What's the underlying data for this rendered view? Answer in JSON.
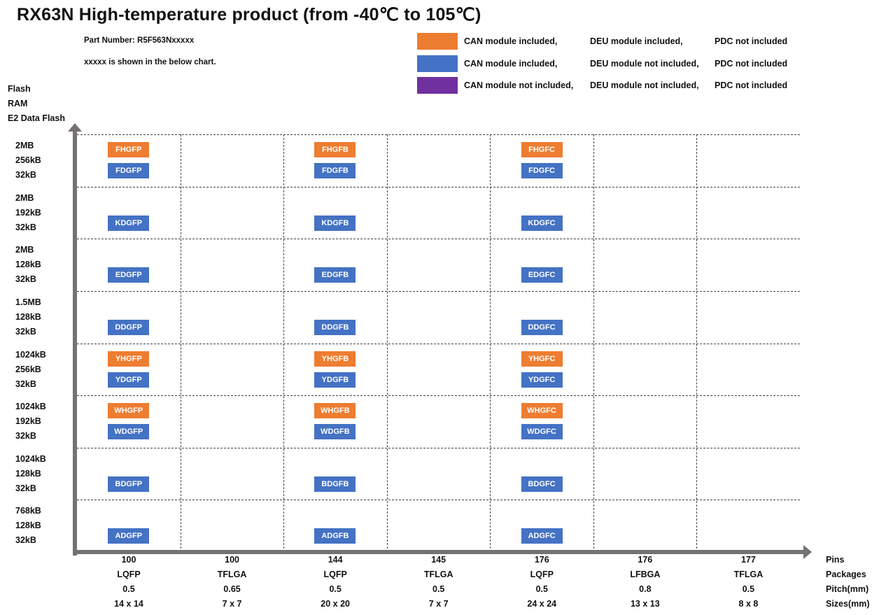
{
  "title": "RX63N  High-temperature product (from -40℃ to 105℃)",
  "part_number": "Part Number: R5F563Nxxxxx",
  "note": "xxxxx is shown in the below chart.",
  "colors": {
    "orange": "#ED7D31",
    "blue": "#4472C4",
    "purple": "#7030A0",
    "axis": "#767171"
  },
  "legend": [
    {
      "color": "orange",
      "can": "CAN module included,",
      "deu": "DEU module included,",
      "pdc": "PDC not included"
    },
    {
      "color": "blue",
      "can": "CAN module included,",
      "deu": "DEU module not included,",
      "pdc": "PDC not included"
    },
    {
      "color": "purple",
      "can": "CAN module not included,",
      "deu": "DEU module not included,",
      "pdc": "PDC not included"
    }
  ],
  "y_axis_titles": [
    "Flash",
    "RAM",
    "E2 Data Flash"
  ],
  "rows": [
    {
      "flash": "2MB",
      "ram": "256kB",
      "e2": "32kB",
      "orange": [
        "FHGFP",
        "FHGFB",
        "FHGFC"
      ],
      "blue": [
        "FDGFP",
        "FDGFB",
        "FDGFC"
      ]
    },
    {
      "flash": "2MB",
      "ram": "192kB",
      "e2": "32kB",
      "orange": null,
      "blue": [
        "KDGFP",
        "KDGFB",
        "KDGFC"
      ]
    },
    {
      "flash": "2MB",
      "ram": "128kB",
      "e2": "32kB",
      "orange": null,
      "blue": [
        "EDGFP",
        "EDGFB",
        "EDGFC"
      ]
    },
    {
      "flash": "1.5MB",
      "ram": "128kB",
      "e2": "32kB",
      "orange": null,
      "blue": [
        "DDGFP",
        "DDGFB",
        "DDGFC"
      ]
    },
    {
      "flash": "1024kB",
      "ram": "256kB",
      "e2": "32kB",
      "orange": [
        "YHGFP",
        "YHGFB",
        "YHGFC"
      ],
      "blue": [
        "YDGFP",
        "YDGFB",
        "YDGFC"
      ]
    },
    {
      "flash": "1024kB",
      "ram": "192kB",
      "e2": "32kB",
      "orange": [
        "WHGFP",
        "WHGFB",
        "WHGFC"
      ],
      "blue": [
        "WDGFP",
        "WDGFB",
        "WDGFC"
      ]
    },
    {
      "flash": "1024kB",
      "ram": "128kB",
      "e2": "32kB",
      "orange": null,
      "blue": [
        "BDGFP",
        "BDGFB",
        "BDGFC"
      ]
    },
    {
      "flash": "768kB",
      "ram": "128kB",
      "e2": "32kB",
      "orange": null,
      "blue": [
        "ADGFP",
        "ADGFB",
        "ADGFC"
      ]
    }
  ],
  "chip_columns": [
    0,
    2,
    4
  ],
  "columns": [
    {
      "pins": "100",
      "package": "LQFP",
      "pitch": "0.5",
      "size": "14 x 14"
    },
    {
      "pins": "100",
      "package": "TFLGA",
      "pitch": "0.65",
      "size": "7 x 7"
    },
    {
      "pins": "144",
      "package": "LQFP",
      "pitch": "0.5",
      "size": "20 x 20"
    },
    {
      "pins": "145",
      "package": "TFLGA",
      "pitch": "0.5",
      "size": "7 x 7"
    },
    {
      "pins": "176",
      "package": "LQFP",
      "pitch": "0.5",
      "size": "24 x 24"
    },
    {
      "pins": "176",
      "package": "LFBGA",
      "pitch": "0.8",
      "size": "13 x 13"
    },
    {
      "pins": "177",
      "package": "TFLGA",
      "pitch": "0.5",
      "size": "8 x 8"
    }
  ],
  "x_axis_titles": [
    "Pins",
    "Packages",
    "Pitch(mm)",
    "Sizes(mm)"
  ]
}
